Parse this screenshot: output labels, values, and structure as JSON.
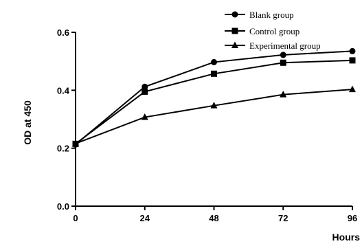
{
  "chart_data": {
    "type": "line",
    "xlabel": "Hours",
    "ylabel": "OD at 450",
    "xlim": [
      0,
      96
    ],
    "ylim": [
      0.0,
      0.6
    ],
    "x": [
      0,
      24,
      48,
      72,
      96
    ],
    "x_ticks": [
      "0",
      "24",
      "48",
      "72",
      "96"
    ],
    "y_ticks": [
      {
        "value": 0.0,
        "label": "0.0"
      },
      {
        "value": 0.2,
        "label": "0.2"
      },
      {
        "value": 0.4,
        "label": "0.4"
      },
      {
        "value": 0.6,
        "label": "0.6"
      }
    ],
    "grid": false,
    "legend": "top-right",
    "series": [
      {
        "name": "Blank group",
        "marker": "circle",
        "values": [
          0.213,
          0.412,
          0.497,
          0.522,
          0.535
        ]
      },
      {
        "name": "Control group",
        "marker": "square",
        "values": [
          0.215,
          0.395,
          0.457,
          0.495,
          0.503
        ]
      },
      {
        "name": "Experimental group",
        "marker": "triangle",
        "values": [
          0.216,
          0.307,
          0.347,
          0.385,
          0.403
        ]
      }
    ]
  }
}
